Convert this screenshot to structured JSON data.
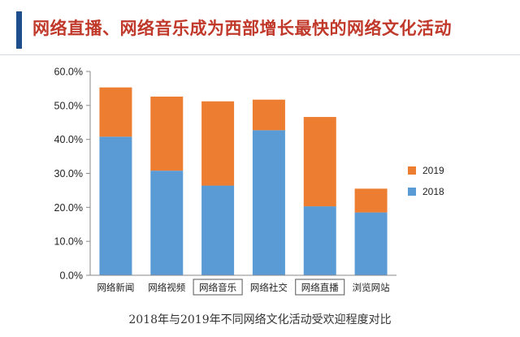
{
  "header": {
    "title": "网络直播、网络音乐成为西部增长最快的网络文化活动"
  },
  "caption": "2018年与2019年不同网络文化活动受欢迎程度对比",
  "chart_data": {
    "type": "bar",
    "stacked": true,
    "categories": [
      "网络新闻",
      "网络视频",
      "网络音乐",
      "网络社交",
      "网络直播",
      "浏览网站"
    ],
    "boxed_categories": [
      "网络音乐",
      "网络直播"
    ],
    "series": [
      {
        "name": "2018",
        "color": "#5b9bd5",
        "values": [
          40.8,
          30.8,
          26.4,
          42.7,
          20.3,
          18.5
        ]
      },
      {
        "name": "2019",
        "color": "#ed7d31",
        "values": [
          14.5,
          21.8,
          24.8,
          9.0,
          26.3,
          7.0
        ]
      }
    ],
    "y_ticks": [
      "0.0%",
      "10.0%",
      "20.0%",
      "30.0%",
      "40.0%",
      "50.0%",
      "60.0%"
    ],
    "ylim": [
      0,
      60
    ],
    "grid": false,
    "legend": "right"
  }
}
